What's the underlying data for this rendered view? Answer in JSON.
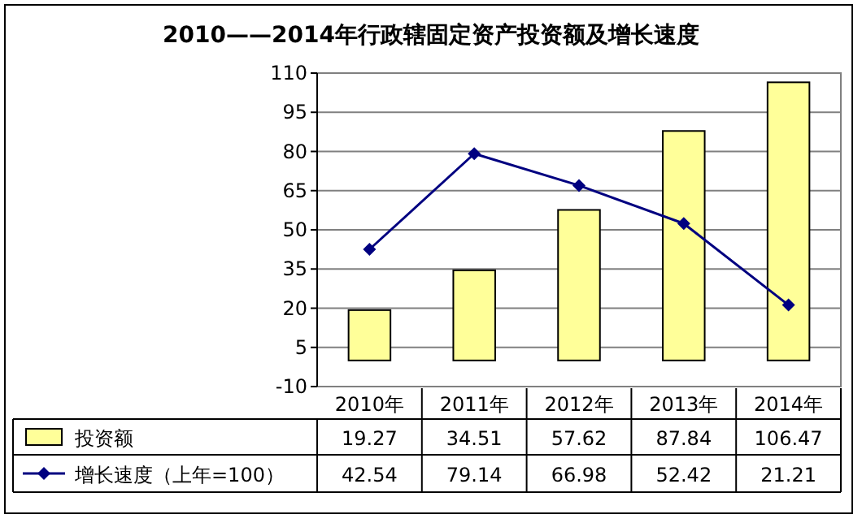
{
  "chart_data": {
    "type": "bar",
    "title": "2010——2014年行政辖固定资产投资额及增长速度",
    "categories": [
      "2010年",
      "2011年",
      "2012年",
      "2013年",
      "2014年"
    ],
    "series": [
      {
        "name": "投资额",
        "color": "#ffff99",
        "values": [
          19.27,
          34.51,
          57.62,
          87.84,
          106.47
        ]
      },
      {
        "name": "增长速度（上年=100）",
        "type": "line",
        "color": "#000080",
        "values": [
          42.54,
          79.14,
          66.98,
          52.42,
          21.21
        ]
      }
    ],
    "ylim": [
      -10,
      110
    ],
    "yticks": [
      -10,
      5,
      20,
      35,
      50,
      65,
      80,
      95,
      110
    ],
    "grid": "y",
    "legend": "bottom",
    "marker": "diamond",
    "data_labels": true
  }
}
